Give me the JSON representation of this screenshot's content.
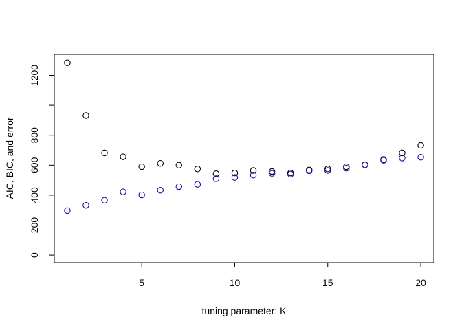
{
  "chart_data": {
    "type": "scatter",
    "title": "",
    "xlabel": "tuning parameter: K",
    "ylabel": "AIC, BIC, and error",
    "xlim": [
      0.3,
      20.7
    ],
    "ylim": [
      -50,
      1340
    ],
    "xticks": [
      5,
      10,
      15,
      20
    ],
    "yticks": [
      0,
      200,
      400,
      600,
      800,
      1000,
      1200
    ],
    "ytick_labels": [
      "0",
      "200",
      "400",
      "600",
      "800",
      "",
      "1200"
    ],
    "grid": false,
    "legend": "none",
    "series": [
      {
        "color": "#000000",
        "marker": "open-circle",
        "x": [
          1,
          2,
          3,
          4,
          5,
          6,
          7,
          8,
          9,
          10,
          11,
          12,
          13,
          14,
          15,
          16,
          17,
          18,
          19,
          20
        ],
        "y": [
          1284,
          932,
          682,
          656,
          590,
          612,
          600,
          575,
          543,
          548,
          565,
          558,
          548,
          568,
          575,
          590,
          603,
          638,
          682,
          732
        ]
      },
      {
        "color": "#1a0dab",
        "marker": "open-circle",
        "x": [
          1,
          2,
          3,
          4,
          5,
          6,
          7,
          8,
          9,
          10,
          11,
          12,
          13,
          14,
          15,
          16,
          17,
          18,
          19,
          20
        ],
        "y": [
          297,
          332,
          366,
          422,
          402,
          433,
          457,
          472,
          510,
          518,
          534,
          545,
          540,
          563,
          565,
          580,
          602,
          633,
          648,
          653
        ]
      }
    ]
  }
}
